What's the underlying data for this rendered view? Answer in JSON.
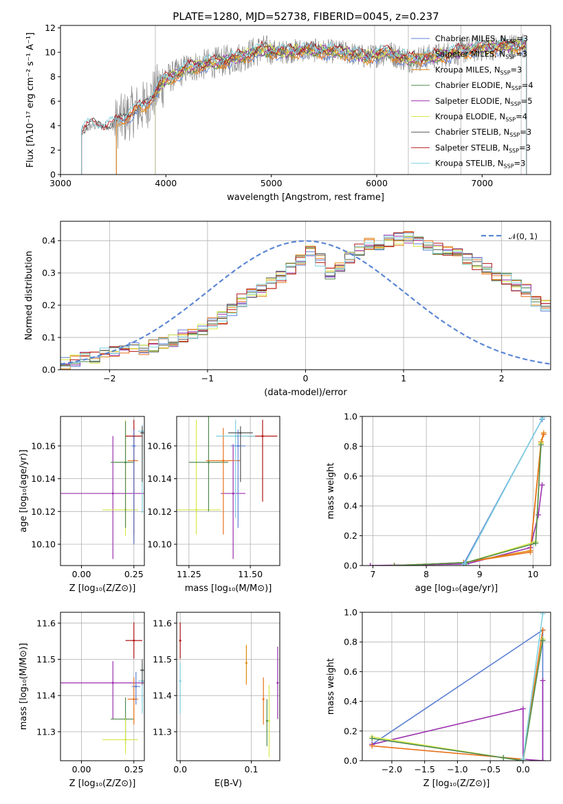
{
  "title": "PLATE=1280, MJD=52738, FIBERID=0045, z=0.237",
  "colors": {
    "chabrier_miles": "#5b7fd4",
    "salpeter_miles": "#e8721c",
    "kroupa_miles": "#e08a12",
    "chabrier_elodie": "#4f8a4f",
    "salpeter_elodie": "#9b2fae",
    "kroupa_elodie": "#d7e84a",
    "chabrier_stelib": "#555555",
    "salpeter_stelib": "#b01515",
    "kroupa_stelib": "#7fd0e0",
    "data": "#888888",
    "normal": "#5b86d4"
  },
  "chart_data": [
    {
      "type": "line",
      "title": "PLATE=1280, MJD=52738, FIBERID=0045, z=0.237",
      "xlabel": "wavelength [Angstrom, rest frame]",
      "ylabel": "Flux [fλ10⁻¹⁷ erg cm⁻² s⁻¹ A⁻¹]",
      "xlim": [
        3000,
        7650
      ],
      "ylim": [
        0,
        12.2
      ],
      "xticks": [
        3000,
        4000,
        5000,
        6000,
        7000
      ],
      "yticks": [
        0,
        2,
        4,
        6,
        8,
        10,
        12
      ],
      "legend_position": "top-right",
      "series": [
        {
          "name": "Chabrier MILES, N_SSP=3",
          "label_main": "Chabrier MILES, N",
          "label_sub": "SSP",
          "label_end": "=3",
          "color_key": "chabrier_miles",
          "x_start": 3530
        },
        {
          "name": "Salpeter MILES, N_SSP=3",
          "label_main": "Salpeter MILES, N",
          "label_sub": "SSP",
          "label_end": "=3",
          "color_key": "salpeter_miles",
          "x_start": 3530
        },
        {
          "name": "Kroupa MILES, N_SSP=3",
          "label_main": "Kroupa MILES, N",
          "label_sub": "SSP",
          "label_end": "=3",
          "color_key": "kroupa_miles",
          "x_start": 3530
        },
        {
          "name": "Chabrier ELODIE, N_SSP=4",
          "label_main": "Chabrier ELODIE, N",
          "label_sub": "SSP",
          "label_end": "=4",
          "color_key": "chabrier_elodie",
          "x_start": 3900
        },
        {
          "name": "Salpeter ELODIE, N_SSP=5",
          "label_main": "Salpeter ELODIE, N",
          "label_sub": "SSP",
          "label_end": "=5",
          "color_key": "salpeter_elodie",
          "x_start": 3900
        },
        {
          "name": "Kroupa ELODIE, N_SSP=4",
          "label_main": "Kroupa ELODIE, N",
          "label_sub": "SSP",
          "label_end": "=4",
          "color_key": "kroupa_elodie",
          "x_start": 3900
        },
        {
          "name": "Chabrier STELIB, N_SSP=3",
          "label_main": "Chabrier STELIB, N",
          "label_sub": "SSP",
          "label_end": "=3",
          "color_key": "chabrier_stelib",
          "x_start": 3200
        },
        {
          "name": "Salpeter STELIB, N_SSP=3",
          "label_main": "Salpeter STELIB, N",
          "label_sub": "SSP",
          "label_end": "=3",
          "color_key": "salpeter_stelib",
          "x_start": 3200
        },
        {
          "name": "Kroupa STELIB, N_SSP=3",
          "label_main": "Kroupa STELIB, N",
          "label_sub": "SSP",
          "label_end": "=3",
          "color_key": "kroupa_stelib",
          "x_start": 3200
        }
      ],
      "continuum_x": [
        3200,
        3300,
        3500,
        3600,
        3700,
        3800,
        3900,
        4000,
        4100,
        4200,
        4300,
        4500,
        4700,
        4900,
        5100,
        5300,
        5500,
        5700,
        5900,
        6100,
        6300,
        6500,
        6700,
        6900,
        7100,
        7300,
        7400
      ],
      "continuum_y": [
        3.6,
        4.0,
        4.0,
        4.6,
        5.2,
        5.6,
        6.8,
        7.8,
        8.2,
        8.7,
        8.9,
        9.2,
        9.6,
        10.2,
        10.0,
        10.2,
        10.1,
        10.0,
        9.6,
        10.0,
        9.4,
        9.6,
        9.9,
        10.2,
        10.4,
        10.5,
        10.6
      ]
    },
    {
      "type": "bar",
      "xlabel": "(data-model)/error",
      "ylabel": "Normed distribution",
      "xlim": [
        -2.5,
        2.5
      ],
      "ylim": [
        0,
        0.46
      ],
      "xticks": [
        -2,
        -1,
        0,
        1,
        2
      ],
      "yticks": [
        0.0,
        0.1,
        0.2,
        0.3,
        0.4
      ],
      "bin_edges_start": -2.5,
      "bin_width": 0.1,
      "base_heights": [
        0.02,
        0.03,
        0.035,
        0.04,
        0.05,
        0.06,
        0.06,
        0.07,
        0.06,
        0.075,
        0.085,
        0.09,
        0.105,
        0.115,
        0.125,
        0.145,
        0.16,
        0.185,
        0.215,
        0.235,
        0.245,
        0.265,
        0.29,
        0.315,
        0.34,
        0.365,
        0.34,
        0.3,
        0.32,
        0.35,
        0.37,
        0.39,
        0.38,
        0.4,
        0.405,
        0.41,
        0.4,
        0.385,
        0.375,
        0.37,
        0.36,
        0.34,
        0.33,
        0.315,
        0.295,
        0.28,
        0.26,
        0.245,
        0.215,
        0.195,
        0.17,
        0.15,
        0.125,
        0.11,
        0.095,
        0.085,
        0.075,
        0.06,
        0.055,
        0.045,
        0.04,
        0.035,
        0.03,
        0.025,
        0.02
      ],
      "legend": {
        "label": "𝒩(0, 1)",
        "position": "top-right"
      }
    },
    {
      "type": "scatter",
      "xlabel": "Z [log₁₀(Z/Z⊙)]",
      "ylabel": "age  [log₁₀(age/yr)]",
      "xlim": [
        -0.1,
        0.3
      ],
      "ylim": [
        10.087,
        10.178
      ],
      "xticks": [
        0.0,
        0.25
      ],
      "yticks": [
        10.1,
        10.12,
        10.14,
        10.16
      ],
      "points": [
        {
          "color_key": "salpeter_elodie",
          "x": 0.15,
          "y": 10.131,
          "xerr": [
            0.31,
            0.15
          ],
          "yerr": [
            0.04,
            0.035
          ]
        },
        {
          "color_key": "kroupa_elodie",
          "x": 0.21,
          "y": 10.121,
          "xerr": [
            0.11,
            0.06
          ],
          "yerr": [
            0.016,
            0.055
          ]
        },
        {
          "color_key": "chabrier_elodie",
          "x": 0.21,
          "y": 10.15,
          "xerr": [
            0.07,
            0.04
          ],
          "yerr": [
            0.04,
            0.025
          ]
        },
        {
          "color_key": "salpeter_miles",
          "x": 0.25,
          "y": 10.151,
          "xerr": [
            0.03,
            0.02
          ],
          "yerr": [
            0.05,
            0.02
          ]
        },
        {
          "color_key": "salpeter_stelib",
          "x": 0.25,
          "y": 10.166,
          "xerr": [
            0.04,
            0.04
          ],
          "yerr": [
            0.06,
            0.01
          ]
        },
        {
          "color_key": "kroupa_stelib",
          "x": 0.29,
          "y": 10.169,
          "xerr": [
            0.02,
            0.01
          ],
          "yerr": [
            0.05,
            0.004
          ]
        },
        {
          "color_key": "chabrier_miles",
          "x": 0.25,
          "y": 10.16,
          "xerr": [
            0.01,
            0.01
          ],
          "yerr": [
            0.06,
            0.01
          ]
        },
        {
          "color_key": "chabrier_stelib",
          "x": 0.29,
          "y": 10.168,
          "xerr": [
            0.01,
            0.01
          ],
          "yerr": [
            0.03,
            0.004
          ]
        }
      ]
    },
    {
      "type": "scatter",
      "xlabel": "mass [log₁₀(M/M⊙)]",
      "ylabel": "",
      "xlim": [
        11.2,
        11.62
      ],
      "ylim": [
        10.087,
        10.178
      ],
      "xticks": [
        11.25,
        11.5
      ],
      "yticks": [
        10.1,
        10.12,
        10.14,
        10.16
      ],
      "points": [
        {
          "color_key": "kroupa_elodie",
          "x": 11.28,
          "y": 10.121,
          "xerr": [
            0.1,
            0.1
          ],
          "yerr": [
            0.015,
            0.055
          ]
        },
        {
          "color_key": "chabrier_elodie",
          "x": 11.33,
          "y": 10.15,
          "xerr": [
            0.08,
            0.08
          ],
          "yerr": [
            0.03,
            0.03
          ]
        },
        {
          "color_key": "salpeter_elodie",
          "x": 11.43,
          "y": 10.131,
          "xerr": [
            0.05,
            0.05
          ],
          "yerr": [
            0.04,
            0.03
          ]
        },
        {
          "color_key": "salpeter_miles",
          "x": 11.39,
          "y": 10.151,
          "xerr": [
            0.07,
            0.07
          ],
          "yerr": [
            0.045,
            0.02
          ]
        },
        {
          "color_key": "salpeter_stelib",
          "x": 11.55,
          "y": 10.166,
          "xerr": [
            0.06,
            0.06
          ],
          "yerr": [
            0.04,
            0.01
          ]
        },
        {
          "color_key": "kroupa_stelib",
          "x": 11.44,
          "y": 10.166,
          "xerr": [
            0.08,
            0.08
          ],
          "yerr": [
            0.05,
            0.01
          ]
        },
        {
          "color_key": "chabrier_miles",
          "x": 11.45,
          "y": 10.16,
          "xerr": [
            0.03,
            0.03
          ],
          "yerr": [
            0.05,
            0.01
          ]
        },
        {
          "color_key": "chabrier_stelib",
          "x": 11.46,
          "y": 10.168,
          "xerr": [
            0.05,
            0.05
          ],
          "yerr": [
            0.03,
            0.004
          ]
        }
      ]
    },
    {
      "type": "line",
      "xlabel": "age  [log₁₀(age/yr)]",
      "ylabel": "mass weight",
      "xlim": [
        6.8,
        10.33
      ],
      "ylim": [
        0,
        1.0
      ],
      "xticks": [
        7,
        8,
        9,
        10
      ],
      "yticks": [
        0.0,
        0.2,
        0.4,
        0.6,
        0.8,
        1.0
      ],
      "series": [
        {
          "color_key": "salpeter_elodie",
          "x": [
            6.95,
            8.75,
            9.95,
            10.1,
            10.17
          ],
          "y": [
            0.0,
            0.01,
            0.12,
            0.34,
            0.54
          ]
        },
        {
          "color_key": "kroupa_miles",
          "x": [
            7.4,
            8.7,
            9.95,
            10.15,
            10.2
          ],
          "y": [
            0.0,
            0.02,
            0.1,
            0.83,
            0.89
          ]
        },
        {
          "color_key": "salpeter_miles",
          "x": [
            7.4,
            8.7,
            9.95,
            10.15,
            10.2
          ],
          "y": [
            0.0,
            0.02,
            0.09,
            0.82,
            0.88
          ]
        },
        {
          "color_key": "kroupa_elodie",
          "x": [
            7.4,
            8.75,
            10.05,
            10.15
          ],
          "y": [
            0.0,
            0.02,
            0.16,
            0.82
          ]
        },
        {
          "color_key": "chabrier_elodie",
          "x": [
            7.4,
            8.75,
            10.05,
            10.15
          ],
          "y": [
            0.0,
            0.02,
            0.15,
            0.81
          ]
        },
        {
          "color_key": "chabrier_miles",
          "x": [
            8.7,
            10.17
          ],
          "y": [
            0.01,
            0.98
          ]
        },
        {
          "color_key": "kroupa_stelib",
          "x": [
            8.72,
            10.18
          ],
          "y": [
            0.01,
            0.99
          ]
        }
      ]
    },
    {
      "type": "scatter",
      "xlabel": "Z [log₁₀(Z/Z⊙)]",
      "ylabel": "mass [log₁₀(M/M⊙)]",
      "xlim": [
        -0.1,
        0.3
      ],
      "ylim": [
        11.22,
        11.63
      ],
      "xticks": [
        0.0,
        0.25
      ],
      "yticks": [
        11.3,
        11.4,
        11.5,
        11.6
      ],
      "points": [
        {
          "color_key": "salpeter_elodie",
          "x": 0.15,
          "y": 11.435,
          "xerr": [
            0.31,
            0.15
          ],
          "yerr": [
            0.1,
            0.06
          ]
        },
        {
          "color_key": "chabrier_elodie",
          "x": 0.21,
          "y": 11.335,
          "xerr": [
            0.07,
            0.04
          ],
          "yerr": [
            0.07,
            0.06
          ]
        },
        {
          "color_key": "kroupa_elodie",
          "x": 0.21,
          "y": 11.278,
          "xerr": [
            0.11,
            0.06
          ],
          "yerr": [
            0.04,
            0.06
          ]
        },
        {
          "color_key": "salpeter_miles",
          "x": 0.25,
          "y": 11.39,
          "xerr": [
            0.03,
            0.02
          ],
          "yerr": [
            0.07,
            0.06
          ]
        },
        {
          "color_key": "salpeter_stelib",
          "x": 0.25,
          "y": 11.552,
          "xerr": [
            0.04,
            0.04
          ],
          "yerr": [
            0.05,
            0.05
          ]
        },
        {
          "color_key": "kroupa_stelib",
          "x": 0.29,
          "y": 11.44,
          "xerr": [
            0.02,
            0.01
          ],
          "yerr": [
            0.09,
            0.05
          ]
        },
        {
          "color_key": "chabrier_miles",
          "x": 0.26,
          "y": 11.425,
          "xerr": [
            0.02,
            0.02
          ],
          "yerr": [
            0.05,
            0.04
          ]
        },
        {
          "color_key": "chabrier_stelib",
          "x": 0.29,
          "y": 11.47,
          "xerr": [
            0.01,
            0.01
          ],
          "yerr": [
            0.04,
            0.03
          ]
        }
      ]
    },
    {
      "type": "scatter",
      "xlabel": "E(B-V)",
      "ylabel": "",
      "xlim": [
        -0.005,
        0.14
      ],
      "ylim": [
        11.22,
        11.63
      ],
      "xticks": [
        0.0,
        0.1
      ],
      "yticks": [
        11.3,
        11.4,
        11.5,
        11.6
      ],
      "points": [
        {
          "color_key": "salpeter_stelib",
          "x": 0.0,
          "y": 11.552,
          "yerr": [
            0.05,
            0.05
          ]
        },
        {
          "color_key": "kroupa_stelib",
          "x": 0.0,
          "y": 11.44,
          "yerr": [
            0.09,
            0.05
          ]
        },
        {
          "color_key": "salpeter_elodie",
          "x": 0.137,
          "y": 11.435,
          "yerr": [
            0.1,
            0.1
          ]
        },
        {
          "color_key": "kroupa_elodie",
          "x": 0.125,
          "y": 11.33,
          "yerr": [
            0.1,
            0.1
          ]
        },
        {
          "color_key": "chabrier_elodie",
          "x": 0.122,
          "y": 11.33,
          "yerr": [
            0.07,
            0.06
          ]
        },
        {
          "color_key": "salpeter_miles",
          "x": 0.117,
          "y": 11.39,
          "yerr": [
            0.07,
            0.06
          ]
        },
        {
          "color_key": "kroupa_miles",
          "x": 0.093,
          "y": 11.49,
          "yerr": [
            0.06,
            0.05
          ]
        }
      ]
    },
    {
      "type": "line",
      "xlabel": "Z [log₁₀(Z/Z⊙)]",
      "ylabel": "mass weight",
      "xlim": [
        -2.45,
        0.42
      ],
      "ylim": [
        0,
        1.0
      ],
      "xticks": [
        -2.0,
        -1.5,
        -1.0,
        -0.5,
        0.0
      ],
      "yticks": [
        0.0,
        0.2,
        0.4,
        0.6,
        0.8,
        1.0
      ],
      "series": [
        {
          "color_key": "chabrier_miles",
          "x": [
            -2.3,
            0.3,
            0.3
          ],
          "y": [
            0.11,
            0.88,
            0.0
          ]
        },
        {
          "color_key": "salpeter_elodie",
          "x": [
            -2.3,
            0.0,
            0.0,
            0.3,
            0.3
          ],
          "y": [
            0.11,
            0.35,
            0.01,
            0.0,
            0.54
          ]
        },
        {
          "color_key": "salpeter_miles",
          "x": [
            -2.3,
            0.0,
            0.3
          ],
          "y": [
            0.1,
            0.01,
            0.88
          ]
        },
        {
          "color_key": "kroupa_elodie",
          "x": [
            -2.3,
            -0.3,
            0.0,
            0.3
          ],
          "y": [
            0.16,
            0.02,
            0.0,
            0.82
          ]
        },
        {
          "color_key": "chabrier_elodie",
          "x": [
            -2.3,
            -0.3,
            0.0,
            0.3
          ],
          "y": [
            0.15,
            0.02,
            0.0,
            0.81
          ]
        },
        {
          "color_key": "kroupa_stelib",
          "x": [
            0.0,
            0.3
          ],
          "y": [
            0.01,
            0.99
          ]
        }
      ]
    }
  ]
}
